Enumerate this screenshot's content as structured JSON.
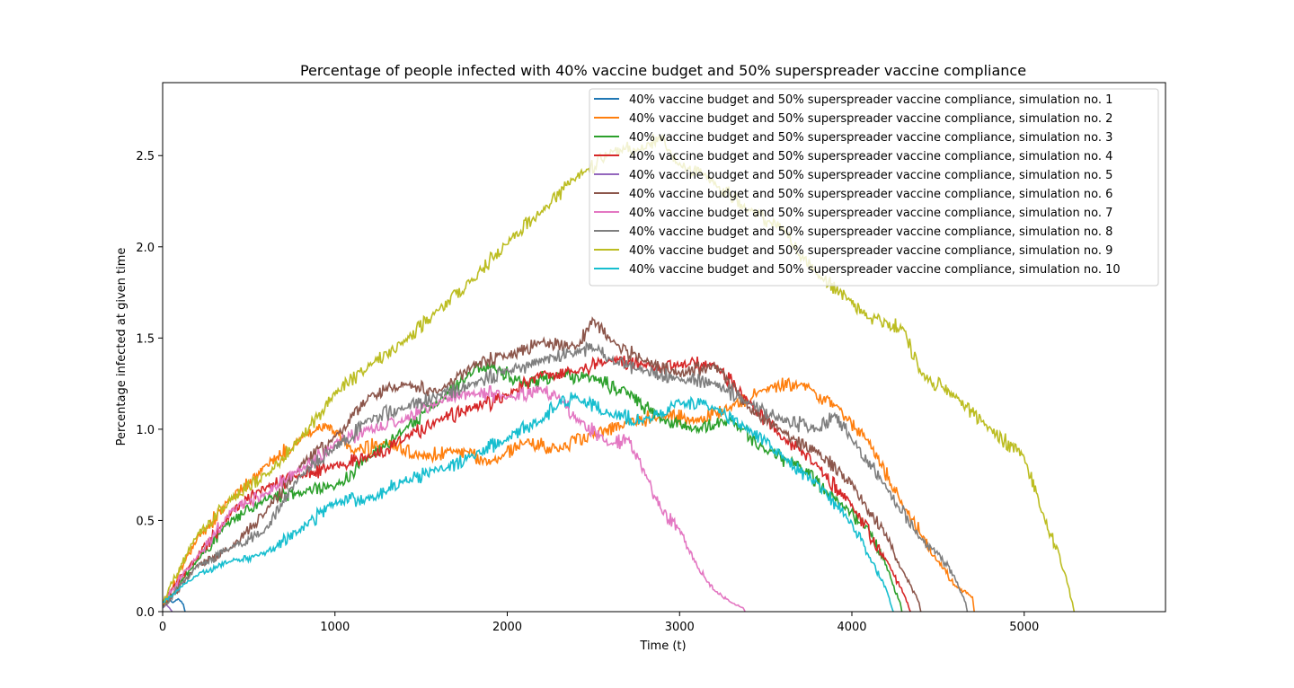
{
  "chart_data": {
    "type": "line",
    "title": "Percentage of people infected with 40% vaccine budget and 50% superspreader vaccine compliance",
    "xlabel": "Time (t)",
    "ylabel": "Percentage infected at given time",
    "xlim": [
      0,
      5820
    ],
    "ylim": [
      0,
      2.9
    ],
    "xticks": [
      0,
      1000,
      2000,
      3000,
      4000,
      5000
    ],
    "yticks": [
      0.0,
      0.5,
      1.0,
      1.5,
      2.0,
      2.5
    ],
    "xtick_labels": [
      "0",
      "1000",
      "2000",
      "3000",
      "4000",
      "5000"
    ],
    "ytick_labels": [
      "0.0",
      "0.5",
      "1.0",
      "1.5",
      "2.0",
      "2.5"
    ],
    "grid": false,
    "legend_position": "top-right",
    "series": [
      {
        "name": "40% vaccine budget and 50% superspreader vaccine compliance, simulation no. 1",
        "color": "#1f77b4",
        "x": [
          0,
          30,
          60,
          90,
          120,
          130
        ],
        "y": [
          0.05,
          0.08,
          0.05,
          0.07,
          0.04,
          0.0
        ]
      },
      {
        "name": "40% vaccine budget and 50% superspreader vaccine compliance, simulation no. 2",
        "color": "#ff7f0e",
        "x": [
          0,
          200,
          400,
          600,
          800,
          950,
          1100,
          1300,
          1500,
          1700,
          1900,
          2100,
          2300,
          2500,
          2700,
          2900,
          3100,
          3300,
          3500,
          3700,
          3900,
          4100,
          4300,
          4500,
          4600,
          4700,
          4710
        ],
        "y": [
          0.02,
          0.4,
          0.62,
          0.8,
          0.95,
          1.02,
          0.88,
          0.93,
          0.85,
          0.88,
          0.82,
          0.93,
          0.89,
          0.97,
          1.04,
          1.08,
          1.05,
          1.12,
          1.22,
          1.25,
          1.13,
          0.93,
          0.58,
          0.28,
          0.14,
          0.08,
          0.0
        ]
      },
      {
        "name": "40% vaccine budget and 50% superspreader vaccine compliance, simulation no. 3",
        "color": "#2ca02c",
        "x": [
          0,
          200,
          400,
          600,
          800,
          1000,
          1200,
          1400,
          1600,
          1800,
          1900,
          2100,
          2300,
          2500,
          2700,
          2900,
          3100,
          3300,
          3500,
          3700,
          3900,
          4100,
          4200,
          4280,
          4290
        ],
        "y": [
          0.02,
          0.28,
          0.5,
          0.62,
          0.65,
          0.68,
          0.85,
          1.0,
          1.15,
          1.32,
          1.35,
          1.25,
          1.3,
          1.28,
          1.2,
          1.05,
          1.0,
          1.05,
          0.88,
          0.8,
          0.62,
          0.45,
          0.25,
          0.05,
          0.0
        ]
      },
      {
        "name": "40% vaccine budget and 50% superspreader vaccine compliance, simulation no. 4",
        "color": "#d62728",
        "x": [
          0,
          200,
          400,
          600,
          800,
          1000,
          1200,
          1400,
          1600,
          1800,
          2000,
          2200,
          2400,
          2600,
          2800,
          3000,
          3200,
          3400,
          3600,
          3800,
          4000,
          4200,
          4300,
          4340
        ],
        "y": [
          0.05,
          0.3,
          0.55,
          0.68,
          0.75,
          0.8,
          0.85,
          0.95,
          1.05,
          1.12,
          1.18,
          1.3,
          1.32,
          1.38,
          1.35,
          1.35,
          1.36,
          1.15,
          0.95,
          0.8,
          0.58,
          0.28,
          0.1,
          0.0
        ]
      },
      {
        "name": "40% vaccine budget and 50% superspreader vaccine compliance, simulation no. 5",
        "color": "#9467bd",
        "x": [
          0,
          20,
          40,
          55
        ],
        "y": [
          0.02,
          0.04,
          0.02,
          0.0
        ]
      },
      {
        "name": "40% vaccine budget and 50% superspreader vaccine compliance, simulation no. 6",
        "color": "#8c564b",
        "x": [
          0,
          200,
          400,
          600,
          800,
          1000,
          1200,
          1400,
          1600,
          1800,
          2000,
          2200,
          2400,
          2500,
          2600,
          2800,
          3000,
          3200,
          3400,
          3600,
          3800,
          4000,
          4200,
          4300,
          4390,
          4400
        ],
        "y": [
          0.02,
          0.25,
          0.35,
          0.55,
          0.8,
          0.95,
          1.18,
          1.25,
          1.2,
          1.35,
          1.4,
          1.48,
          1.45,
          1.6,
          1.48,
          1.38,
          1.3,
          1.35,
          1.12,
          0.98,
          0.88,
          0.7,
          0.42,
          0.22,
          0.05,
          0.0
        ]
      },
      {
        "name": "40% vaccine budget and 50% superspreader vaccine compliance, simulation no. 7",
        "color": "#e377c2",
        "x": [
          0,
          200,
          400,
          600,
          800,
          1000,
          1200,
          1400,
          1600,
          1800,
          2000,
          2200,
          2300,
          2400,
          2600,
          2700,
          2800,
          2900,
          3000,
          3100,
          3200,
          3300,
          3370,
          3380
        ],
        "y": [
          0.05,
          0.3,
          0.55,
          0.65,
          0.78,
          0.92,
          1.0,
          1.05,
          1.15,
          1.2,
          1.18,
          1.22,
          1.18,
          1.05,
          0.92,
          0.95,
          0.75,
          0.55,
          0.45,
          0.25,
          0.12,
          0.05,
          0.02,
          0.0
        ]
      },
      {
        "name": "40% vaccine budget and 50% superspreader vaccine compliance, simulation no. 8",
        "color": "#7f7f7f",
        "x": [
          0,
          200,
          400,
          600,
          800,
          1000,
          1200,
          1400,
          1600,
          1800,
          2000,
          2200,
          2400,
          2500,
          2600,
          2800,
          3000,
          3200,
          3400,
          3600,
          3800,
          3900,
          4000,
          4200,
          4400,
          4500,
          4600,
          4660,
          4670
        ],
        "y": [
          0.02,
          0.25,
          0.35,
          0.45,
          0.75,
          0.9,
          1.05,
          1.12,
          1.18,
          1.25,
          1.32,
          1.38,
          1.42,
          1.45,
          1.38,
          1.32,
          1.28,
          1.25,
          1.15,
          1.05,
          1.0,
          1.08,
          0.95,
          0.68,
          0.4,
          0.32,
          0.18,
          0.05,
          0.0
        ]
      },
      {
        "name": "40% vaccine budget and 50% superspreader vaccine compliance, simulation no. 9",
        "color": "#bcbd22",
        "x": [
          0,
          200,
          400,
          600,
          800,
          1000,
          1200,
          1400,
          1600,
          1800,
          2000,
          2200,
          2400,
          2600,
          2800,
          2900,
          3000,
          3200,
          3400,
          3600,
          3800,
          4000,
          4100,
          4200,
          4300,
          4400,
          4600,
          4800,
          5000,
          5100,
          5200,
          5280,
          5290
        ],
        "y": [
          0.05,
          0.42,
          0.62,
          0.75,
          0.95,
          1.2,
          1.35,
          1.48,
          1.65,
          1.82,
          2.02,
          2.2,
          2.38,
          2.52,
          2.55,
          2.6,
          2.45,
          2.35,
          2.2,
          2.1,
          1.85,
          1.7,
          1.6,
          1.58,
          1.55,
          1.3,
          1.18,
          1.0,
          0.85,
          0.55,
          0.32,
          0.05,
          0.0
        ]
      },
      {
        "name": "40% vaccine budget and 50% superspreader vaccine compliance, simulation no. 10",
        "color": "#17becf",
        "x": [
          0,
          200,
          400,
          600,
          800,
          1000,
          1200,
          1400,
          1600,
          1800,
          2000,
          2200,
          2300,
          2400,
          2600,
          2800,
          3000,
          3200,
          3400,
          3600,
          3800,
          4000,
          4100,
          4200,
          4240
        ],
        "y": [
          0.05,
          0.2,
          0.28,
          0.32,
          0.45,
          0.6,
          0.62,
          0.72,
          0.78,
          0.85,
          0.95,
          1.05,
          1.15,
          1.18,
          1.08,
          1.05,
          1.15,
          1.12,
          1.0,
          0.85,
          0.7,
          0.48,
          0.3,
          0.12,
          0.0
        ]
      }
    ]
  }
}
